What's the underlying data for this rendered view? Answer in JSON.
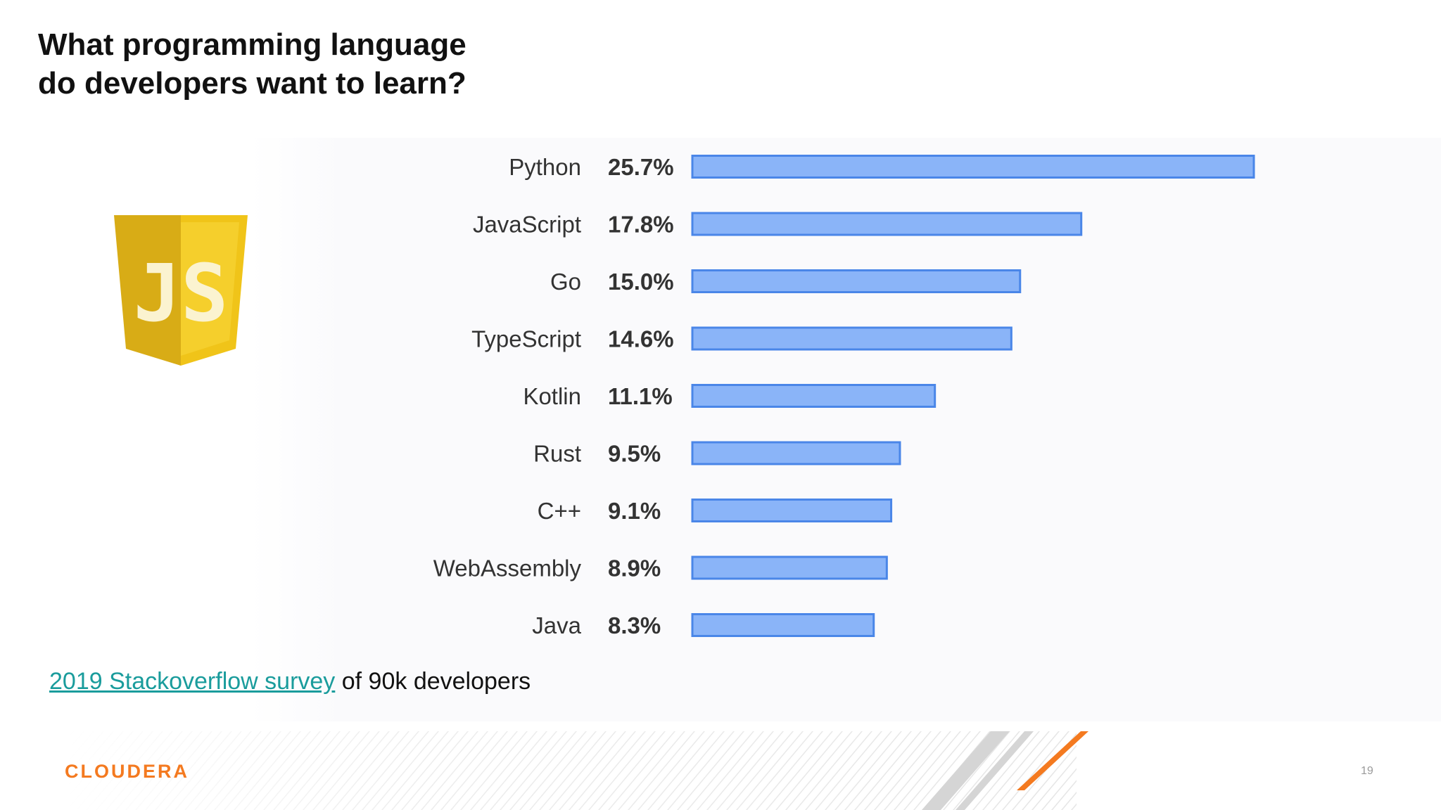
{
  "slide": {
    "title_line1": "What programming language",
    "title_line2": "do developers want to learn?",
    "caption_link": "2019 Stackoverflow survey",
    "caption_rest": " of 90k developers",
    "brand": "CLOUDERA",
    "page_number": "19",
    "logo_text": "JS"
  },
  "colors": {
    "bar_fill": "#8ab4f8",
    "bar_stroke": "#4a86e8",
    "brand_orange": "#f47a20",
    "link_teal": "#1a9c9c",
    "js_yellow": "#f0c419",
    "js_yellow_dark": "#d8ac16"
  },
  "icons": {
    "logo": "javascript-shield-icon"
  },
  "chart_data": {
    "type": "bar",
    "orientation": "horizontal",
    "categories": [
      "Python",
      "JavaScript",
      "Go",
      "TypeScript",
      "Kotlin",
      "Rust",
      "C++",
      "WebAssembly",
      "Java"
    ],
    "values": [
      25.7,
      17.8,
      15.0,
      14.6,
      11.1,
      9.5,
      9.1,
      8.9,
      8.3
    ],
    "value_labels": [
      "25.7%",
      "17.8%",
      "15.0%",
      "14.6%",
      "11.1%",
      "9.5%",
      "9.1%",
      "8.9%",
      "8.3%"
    ],
    "unit": "%",
    "xlim": [
      0,
      25.7
    ],
    "grid": false,
    "legend": "none"
  }
}
